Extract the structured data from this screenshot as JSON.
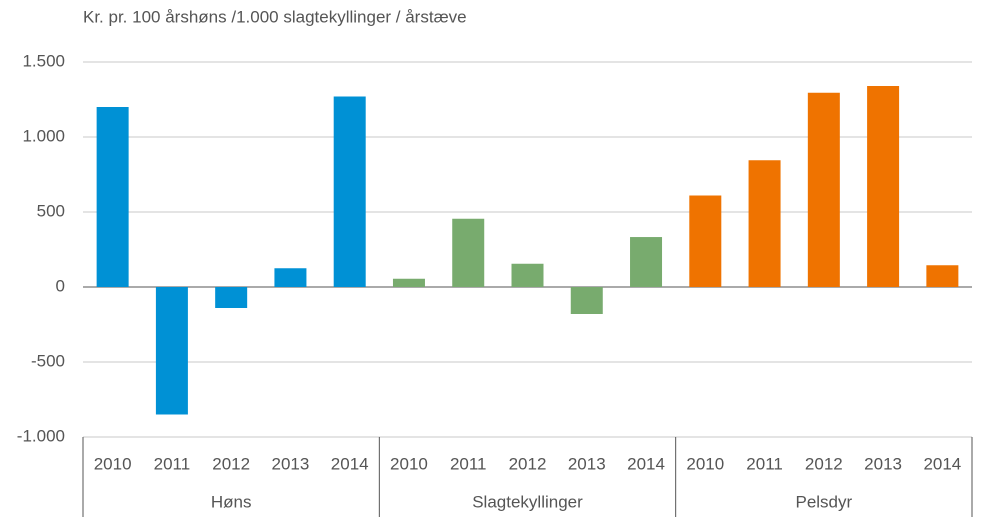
{
  "chart_data": {
    "type": "bar",
    "y_axis_label": "Kr. pr. 100 årshøns /1.000 slagtekyllinger / årstæve",
    "groups": [
      {
        "name": "Høns",
        "color": "#0091d5",
        "categories": [
          "2010",
          "2011",
          "2012",
          "2013",
          "2014"
        ],
        "values": [
          1200,
          -850,
          -140,
          125,
          1270
        ]
      },
      {
        "name": "Slagtekyllinger",
        "color": "#78ab6e",
        "categories": [
          "2010",
          "2011",
          "2012",
          "2013",
          "2014"
        ],
        "values": [
          55,
          455,
          155,
          -180,
          333
        ]
      },
      {
        "name": "Pelsdyr",
        "color": "#ef7300",
        "categories": [
          "2010",
          "2011",
          "2012",
          "2013",
          "2014"
        ],
        "values": [
          610,
          845,
          1295,
          1340,
          145
        ]
      }
    ],
    "ylim": [
      -1000,
      1500
    ],
    "yticks": [
      {
        "value": -1000,
        "label": "-1.000"
      },
      -500,
      0,
      500,
      {
        "value": 1000,
        "label": "1.000"
      },
      {
        "value": 1500,
        "label": "1.500"
      }
    ],
    "grid": true
  }
}
